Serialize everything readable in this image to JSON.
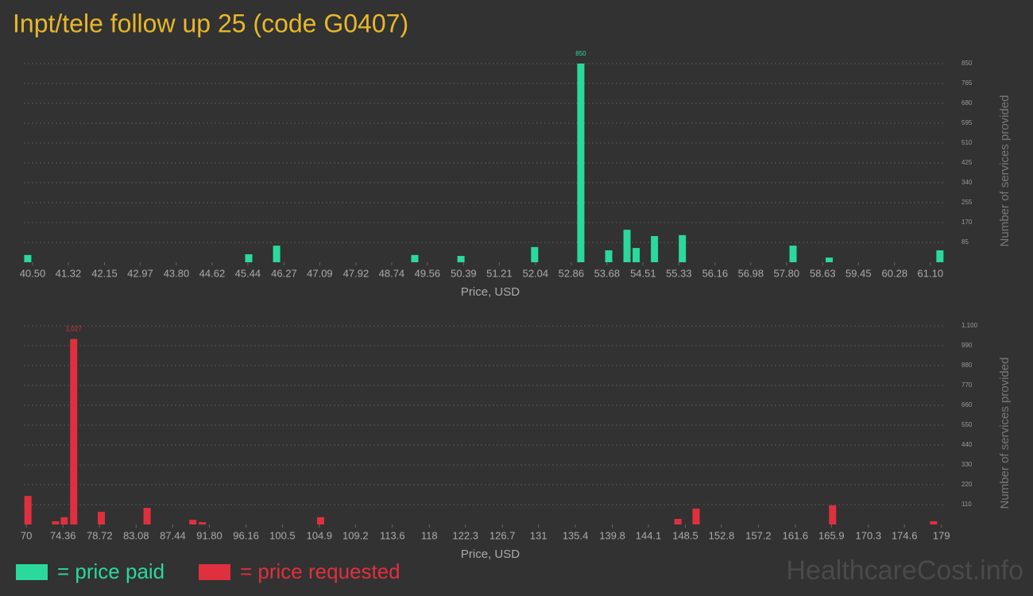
{
  "title": "Inpt/tele follow up 25 (code G0407)",
  "watermark": "HealthcareCost.info",
  "chart_data": [
    {
      "type": "bar",
      "x_label": "Price, USD",
      "y_label": "Number of services provided",
      "x": [
        40.39,
        45.46,
        46.1,
        49.27,
        50.33,
        52.02,
        53.08,
        53.72,
        54.14,
        54.35,
        54.77,
        55.41,
        57.95,
        58.78,
        61.32
      ],
      "series": [
        {
          "name": "= price paid",
          "color": "#2bd99c",
          "values": [
            31,
            34,
            71,
            31,
            27,
            65,
            850,
            51,
            139,
            61,
            112,
            116,
            71,
            20,
            51
          ]
        }
      ],
      "xlim": [
        40.3,
        61.45
      ],
      "xticks": [
        {
          "value": 40.5,
          "label": "40.50"
        },
        41.32,
        42.15,
        42.97,
        {
          "value": 43.8,
          "label": "43.80"
        },
        44.62,
        45.44,
        46.27,
        47.09,
        47.92,
        48.74,
        49.56,
        50.39,
        51.21,
        52.04,
        52.86,
        53.68,
        54.51,
        55.33,
        56.16,
        56.98,
        {
          "value": 57.8,
          "label": "57.80"
        },
        58.63,
        59.45,
        60.28,
        {
          "value": 61.1,
          "label": "61.10"
        }
      ],
      "ylim": [
        0,
        850
      ],
      "yticks": [
        85,
        170,
        255,
        340,
        425,
        510,
        595,
        680,
        765,
        850
      ],
      "grid": true
    },
    {
      "type": "bar",
      "x_label": "Price, USD",
      "y_label": "Number of services provided",
      "x": [
        70.19,
        73.48,
        74.51,
        75.64,
        78.93,
        84.38,
        89.83,
        90.96,
        105.05,
        147.62,
        149.78,
        166.04,
        178.07
      ],
      "series": [
        {
          "name": "= price requested",
          "color": "#e0303f",
          "values": [
            158,
            18,
            40,
            1027,
            70,
            92,
            26,
            13,
            40,
            31,
            88,
            106,
            18
          ],
          "value_labels": [
            null,
            null,
            null,
            "1,027",
            null,
            null,
            null,
            null,
            null,
            null,
            null,
            null,
            null
          ]
        }
      ],
      "xlim": [
        69.7,
        179.5
      ],
      "xticks": [
        70,
        74.36,
        78.72,
        83.08,
        87.44,
        {
          "value": 91.8,
          "label": "91.80"
        },
        96.16,
        100.5,
        104.9,
        109.2,
        113.6,
        118,
        122.3,
        126.7,
        131,
        135.4,
        139.8,
        144.1,
        148.5,
        152.8,
        157.2,
        161.6,
        165.9,
        170.3,
        174.6,
        179
      ],
      "ylim": [
        0,
        1100
      ],
      "yticks": [
        110,
        220,
        330,
        440,
        550,
        660,
        770,
        880,
        990,
        {
          "value": 1100,
          "label": "1,100"
        }
      ],
      "grid": true
    }
  ]
}
